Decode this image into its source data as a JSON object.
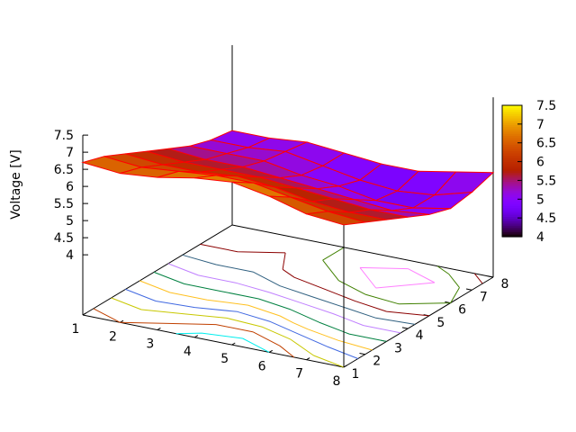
{
  "chart_data": {
    "type": "surface3d",
    "zlabel": "Voltage [V]",
    "x_ticks": [
      "1",
      "2",
      "3",
      "4",
      "5",
      "6",
      "7",
      "8"
    ],
    "y_ticks": [
      "1",
      "2",
      "3",
      "4",
      "5",
      "6",
      "7",
      "8"
    ],
    "z_ticks": [
      "4",
      "4.5",
      "5",
      "5.5",
      "6",
      "6.5",
      "7",
      "7.5"
    ],
    "zlim": [
      4,
      7.5
    ],
    "colorbar": {
      "range": [
        4,
        7.5
      ],
      "ticks": [
        "4",
        "4.5",
        "5",
        "5.5",
        "6",
        "6.5",
        "7",
        "7.5"
      ],
      "palette": "black-purple-red-orange-yellow"
    },
    "x": [
      1,
      2,
      3,
      4,
      5,
      6,
      7,
      8
    ],
    "y": [
      1,
      2,
      3,
      4,
      5,
      6,
      7,
      8
    ],
    "z_rows_by_y": [
      [
        6.7,
        6.6,
        6.7,
        6.9,
        7.0,
        6.8,
        6.5,
        6.4
      ],
      [
        6.5,
        6.4,
        6.5,
        6.6,
        6.6,
        6.4,
        6.2,
        6.1
      ],
      [
        6.2,
        6.1,
        6.1,
        6.2,
        6.1,
        5.9,
        5.8,
        5.8
      ],
      [
        5.9,
        5.8,
        5.8,
        5.8,
        5.7,
        5.6,
        5.5,
        5.5
      ],
      [
        5.6,
        5.5,
        5.5,
        5.4,
        5.3,
        5.2,
        5.1,
        5.2
      ],
      [
        5.3,
        5.3,
        5.3,
        5.1,
        5.0,
        4.8,
        4.8,
        5.0
      ],
      [
        5.1,
        5.1,
        5.2,
        5.0,
        4.8,
        4.7,
        4.8,
        5.1
      ],
      [
        5.0,
        5.0,
        5.1,
        5.0,
        4.9,
        4.9,
        5.1,
        5.3
      ]
    ],
    "mesh_color": "#ff0000",
    "contour_levels": [
      4.8,
      5.0,
      5.2,
      5.4,
      5.6,
      5.8,
      6.0,
      6.2,
      6.4,
      6.6,
      6.8
    ],
    "contour_colors": [
      "#ff80ff",
      "#408000",
      "#8b0000",
      "#306080",
      "#c080ff",
      "#008040",
      "#ffc020",
      "#4169e1",
      "#c8c800",
      "#c04000",
      "#00eeee"
    ]
  }
}
